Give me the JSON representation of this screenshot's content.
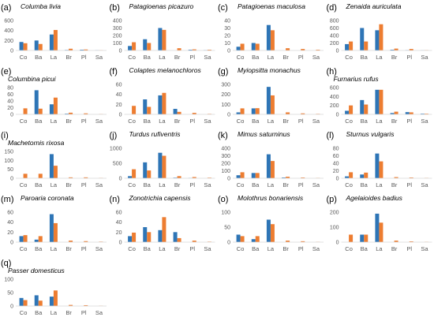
{
  "colors": {
    "series_blue": "#2E75B6",
    "series_orange": "#ED7D31",
    "axis": "#D9D9D9",
    "tick_text": "#595959"
  },
  "chart_data": [
    {
      "type": "bar",
      "label": "(a)",
      "title": "Columba livia",
      "categories": [
        "Co",
        "Ba",
        "La",
        "Br",
        "Pl",
        "Sa"
      ],
      "ylim": [
        0,
        600
      ],
      "yticks": [
        0,
        200,
        400,
        600
      ],
      "series": [
        {
          "color": "#2E75B6",
          "values": [
            170,
            200,
            320,
            10,
            15,
            5
          ]
        },
        {
          "color": "#ED7D31",
          "values": [
            145,
            130,
            410,
            35,
            20,
            5
          ]
        }
      ]
    },
    {
      "type": "bar",
      "label": "(b)",
      "title": "Patagioenas picazuro",
      "categories": [
        "Co",
        "Ba",
        "La",
        "Br",
        "Pl",
        "Sa"
      ],
      "ylim": [
        0,
        400
      ],
      "yticks": [
        0,
        100,
        200,
        300,
        400
      ],
      "series": [
        {
          "color": "#2E75B6",
          "values": [
            60,
            150,
            300,
            0,
            10,
            5
          ]
        },
        {
          "color": "#ED7D31",
          "values": [
            110,
            100,
            275,
            30,
            15,
            10
          ]
        }
      ]
    },
    {
      "type": "bar",
      "label": "(c)",
      "title": "Patagioenas maculosa",
      "categories": [
        "Co",
        "Ba",
        "La",
        "Br",
        "Pl",
        "Sa"
      ],
      "ylim": [
        0,
        40
      ],
      "yticks": [
        0,
        10,
        20,
        30,
        40
      ],
      "series": [
        {
          "color": "#2E75B6",
          "values": [
            5,
            10,
            34,
            0,
            0,
            0
          ]
        },
        {
          "color": "#ED7D31",
          "values": [
            9,
            9,
            27,
            3,
            2,
            1
          ]
        }
      ]
    },
    {
      "type": "bar",
      "label": "(d)",
      "title": "Zenaida auriculata",
      "categories": [
        "Co",
        "Ba",
        "La",
        "Br",
        "Pl",
        "Sa"
      ],
      "ylim": [
        0,
        800
      ],
      "yticks": [
        0,
        200,
        400,
        600,
        800
      ],
      "series": [
        {
          "color": "#2E75B6",
          "values": [
            170,
            600,
            540,
            20,
            10,
            5
          ]
        },
        {
          "color": "#ED7D31",
          "values": [
            240,
            240,
            700,
            50,
            40,
            10
          ]
        }
      ]
    },
    {
      "type": "bar",
      "label": "(e)",
      "title": "Columbina picui",
      "categories": [
        "Co",
        "Ba",
        "La",
        "Br",
        "Pl",
        "Sa"
      ],
      "ylim": [
        0,
        80
      ],
      "yticks": [
        0,
        20,
        40,
        60,
        80
      ],
      "series": [
        {
          "color": "#2E75B6",
          "values": [
            0,
            72,
            30,
            2,
            0,
            0
          ]
        },
        {
          "color": "#ED7D31",
          "values": [
            18,
            17,
            50,
            5,
            3,
            1
          ]
        }
      ]
    },
    {
      "type": "bar",
      "label": "(f)",
      "title": "Colaptes melanochloros",
      "categories": [
        "Co",
        "Ba",
        "La",
        "Br",
        "Pl",
        "Sa"
      ],
      "ylim": [
        0,
        60
      ],
      "yticks": [
        0,
        20,
        40,
        60
      ],
      "series": [
        {
          "color": "#2E75B6",
          "values": [
            0,
            30,
            38,
            11,
            0,
            0
          ]
        },
        {
          "color": "#ED7D31",
          "values": [
            17,
            15,
            43,
            5,
            3,
            1
          ]
        }
      ]
    },
    {
      "type": "bar",
      "label": "(g)",
      "title": "Myiopsitta monachus",
      "categories": [
        "Co",
        "Ba",
        "La",
        "Br",
        "Pl",
        "Sa"
      ],
      "ylim": [
        0,
        300
      ],
      "yticks": [
        0,
        100,
        200,
        300
      ],
      "series": [
        {
          "color": "#2E75B6",
          "values": [
            20,
            60,
            275,
            0,
            0,
            0
          ]
        },
        {
          "color": "#ED7D31",
          "values": [
            60,
            62,
            190,
            20,
            10,
            5
          ]
        }
      ]
    },
    {
      "type": "bar",
      "label": "(h)",
      "title": "Furnarius rufus",
      "categories": [
        "Co",
        "Ba",
        "La",
        "Br",
        "Pl",
        "Sa"
      ],
      "ylim": [
        0,
        600
      ],
      "yticks": [
        0,
        200,
        400,
        600
      ],
      "series": [
        {
          "color": "#2E75B6",
          "values": [
            80,
            320,
            550,
            30,
            50,
            15
          ]
        },
        {
          "color": "#ED7D31",
          "values": [
            200,
            220,
            550,
            60,
            45,
            15
          ]
        }
      ]
    },
    {
      "type": "bar",
      "label": "(i)",
      "title": "Machetornis rixosa",
      "categories": [
        "Co",
        "Ba",
        "La",
        "Br",
        "Pl",
        "Sa"
      ],
      "ylim": [
        0,
        150
      ],
      "yticks": [
        0,
        50,
        100,
        150
      ],
      "series": [
        {
          "color": "#2E75B6",
          "values": [
            0,
            0,
            135,
            0,
            0,
            0
          ]
        },
        {
          "color": "#ED7D31",
          "values": [
            25,
            25,
            70,
            5,
            5,
            2
          ]
        }
      ]
    },
    {
      "type": "bar",
      "label": "(j)",
      "title": "Turdus rufiventris",
      "categories": [
        "Co",
        "Ba",
        "La",
        "Br",
        "Pl",
        "Sa"
      ],
      "ylim": [
        0,
        1000
      ],
      "yticks": [
        0,
        500,
        1000
      ],
      "series": [
        {
          "color": "#2E75B6",
          "values": [
            70,
            530,
            850,
            20,
            10,
            0
          ]
        },
        {
          "color": "#ED7D31",
          "values": [
            300,
            260,
            750,
            70,
            40,
            20
          ]
        }
      ]
    },
    {
      "type": "bar",
      "label": "(k)",
      "title": "Mimus saturninus",
      "categories": [
        "Co",
        "Ba",
        "La",
        "Br",
        "Pl",
        "Sa"
      ],
      "ylim": [
        0,
        400
      ],
      "yticks": [
        0,
        100,
        200,
        300,
        400
      ],
      "series": [
        {
          "color": "#2E75B6",
          "values": [
            40,
            70,
            320,
            10,
            0,
            0
          ]
        },
        {
          "color": "#ED7D31",
          "values": [
            80,
            70,
            230,
            20,
            10,
            5
          ]
        }
      ]
    },
    {
      "type": "bar",
      "label": "(l)",
      "title": "Sturnus vulgaris",
      "categories": [
        "Co",
        "Ba",
        "La",
        "Br",
        "Pl",
        "Sa"
      ],
      "ylim": [
        0,
        80
      ],
      "yticks": [
        0,
        20,
        40,
        60,
        80
      ],
      "series": [
        {
          "color": "#2E75B6",
          "values": [
            5,
            10,
            66,
            0,
            0,
            0
          ]
        },
        {
          "color": "#ED7D31",
          "values": [
            16,
            15,
            45,
            3,
            2,
            1
          ]
        }
      ]
    },
    {
      "type": "bar",
      "label": "(m)",
      "title": "Paroaria coronata",
      "categories": [
        "Co",
        "Ba",
        "La",
        "Br",
        "Pl",
        "Sa"
      ],
      "ylim": [
        0,
        60
      ],
      "yticks": [
        0,
        20,
        40,
        60
      ],
      "series": [
        {
          "color": "#2E75B6",
          "values": [
            12,
            5,
            56,
            0,
            0,
            0
          ]
        },
        {
          "color": "#ED7D31",
          "values": [
            14,
            12,
            38,
            3,
            2,
            1
          ]
        }
      ]
    },
    {
      "type": "bar",
      "label": "(n)",
      "title": "Zonotrichia capensis",
      "categories": [
        "Co",
        "Ba",
        "La",
        "Br",
        "Pl",
        "Sa"
      ],
      "ylim": [
        0,
        60
      ],
      "yticks": [
        0,
        20,
        40,
        60
      ],
      "series": [
        {
          "color": "#2E75B6",
          "values": [
            12,
            30,
            24,
            20,
            0,
            0
          ]
        },
        {
          "color": "#ED7D31",
          "values": [
            19,
            20,
            50,
            8,
            3,
            1
          ]
        }
      ]
    },
    {
      "type": "bar",
      "label": "(o)",
      "title": "Molothrus bonariensis",
      "categories": [
        "Co",
        "Ba",
        "La",
        "Br",
        "Pl",
        "Sa"
      ],
      "ylim": [
        0,
        100
      ],
      "yticks": [
        0,
        50,
        100
      ],
      "series": [
        {
          "color": "#2E75B6",
          "values": [
            25,
            10,
            75,
            0,
            0,
            0
          ]
        },
        {
          "color": "#ED7D31",
          "values": [
            20,
            20,
            60,
            5,
            3,
            1
          ]
        }
      ]
    },
    {
      "type": "bar",
      "label": "(p)",
      "title": "Agelaioides badius",
      "categories": [
        "Co",
        "Ba",
        "La",
        "Br",
        "Pl",
        "Sa"
      ],
      "ylim": [
        0,
        200
      ],
      "yticks": [
        0,
        100,
        200
      ],
      "series": [
        {
          "color": "#2E75B6",
          "values": [
            0,
            50,
            190,
            0,
            0,
            0
          ]
        },
        {
          "color": "#ED7D31",
          "values": [
            50,
            50,
            130,
            10,
            5,
            2
          ]
        }
      ]
    },
    {
      "type": "bar",
      "label": "(q)",
      "title": "Passer domesticus",
      "categories": [
        "Co",
        "Ba",
        "La",
        "Br",
        "Pl",
        "Sa"
      ],
      "ylim": [
        0,
        100
      ],
      "yticks": [
        0,
        50,
        100
      ],
      "series": [
        {
          "color": "#2E75B6",
          "values": [
            30,
            40,
            35,
            0,
            0,
            0
          ]
        },
        {
          "color": "#ED7D31",
          "values": [
            22,
            20,
            58,
            4,
            3,
            1
          ]
        }
      ]
    }
  ]
}
